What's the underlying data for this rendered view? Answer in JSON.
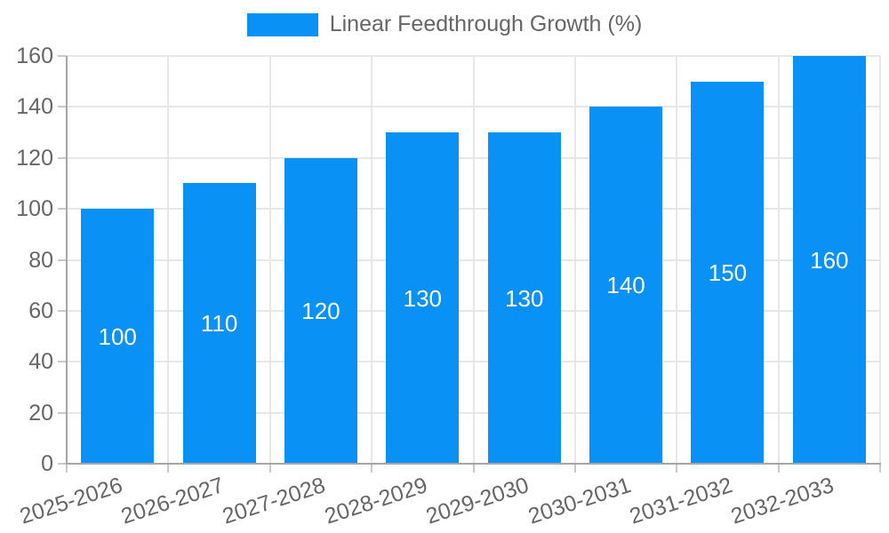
{
  "chart_data": {
    "type": "bar",
    "title": "",
    "categories": [
      "2025-2026",
      "2026-2027",
      "2027-2028",
      "2028-2029",
      "2029-2030",
      "2030-2031",
      "2031-2032",
      "2032-2033"
    ],
    "series": [
      {
        "name": "Linear Feedthrough Growth (%)",
        "values": [
          100,
          110,
          120,
          130,
          130,
          140,
          150,
          160
        ]
      }
    ],
    "xlabel": "",
    "ylabel": "",
    "ylim": [
      0,
      160
    ],
    "ytick_step": 20,
    "ytick_labels": [
      "0",
      "20",
      "40",
      "60",
      "80",
      "100",
      "120",
      "140",
      "160"
    ],
    "grid": true,
    "legend_position": "top",
    "value_labels_shown": true,
    "bar_color": "#0991f5",
    "value_label_color": "#ffffff",
    "tick_label_color": "#666666",
    "grid_color": "#e7e7e7",
    "axis_color": "#a6a6a6",
    "background_color": "#ffffff"
  }
}
